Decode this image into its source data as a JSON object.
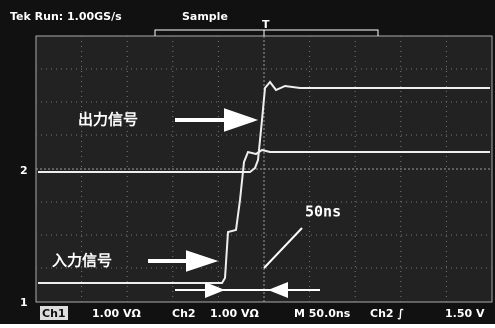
{
  "header": {
    "status": "Tek Run: 1.00GS/s",
    "mode": "Sample"
  },
  "annotations": {
    "output": "出力信号",
    "input": "入力信号",
    "delay": "50ns"
  },
  "markers": {
    "ch2": "2",
    "ch1": "1"
  },
  "status_bar": {
    "ch1": "Ch1",
    "ch1_scale": "1.00 VΩ",
    "ch2": "Ch2",
    "ch2_scale": "1.00 VΩ",
    "timebase": "M 50.0ns",
    "trigger": "Ch2 ∫",
    "trigger_level": "1.50 V"
  }
}
